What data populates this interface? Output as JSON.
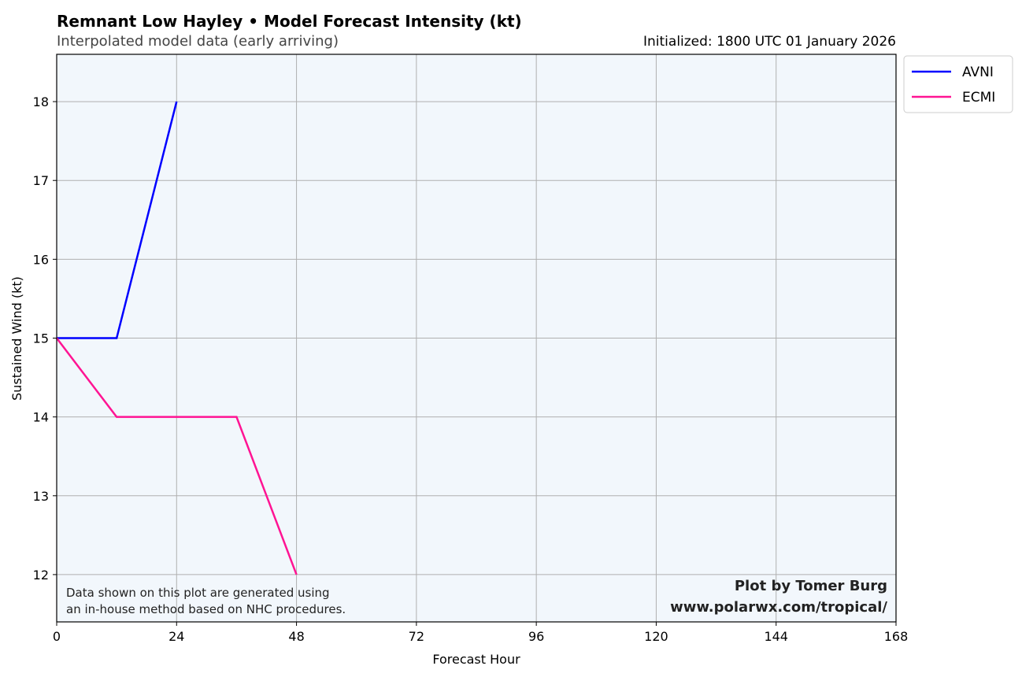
{
  "chart_data": {
    "type": "line",
    "title": "Remnant Low Hayley • Model Forecast Intensity (kt)",
    "subtitle": "Interpolated model data (early arriving)",
    "init_label": "Initialized: 1800 UTC 01 January 2026",
    "xlabel": "Forecast Hour",
    "ylabel": "Sustained Wind (kt)",
    "xlim": [
      0,
      168
    ],
    "ylim": [
      11.4,
      18.6
    ],
    "xticks": [
      0,
      24,
      48,
      72,
      96,
      120,
      144,
      168
    ],
    "yticks": [
      12,
      13,
      14,
      15,
      16,
      17,
      18
    ],
    "grid": true,
    "legend_position": "outside-top-right",
    "series": [
      {
        "name": "AVNI",
        "color": "#0000ff",
        "x": [
          0,
          12,
          24
        ],
        "y": [
          15,
          15,
          18
        ]
      },
      {
        "name": "ECMI",
        "color": "#ff1493",
        "x": [
          0,
          12,
          36,
          48
        ],
        "y": [
          15,
          14,
          14,
          12
        ]
      }
    ],
    "note_lines": [
      "Data shown on this plot are generated using",
      "an in-house method based on NHC procedures."
    ],
    "credit_lines": [
      "Plot by Tomer Burg",
      "www.polarwx.com/tropical/"
    ],
    "background_color": "#f2f7fc"
  }
}
